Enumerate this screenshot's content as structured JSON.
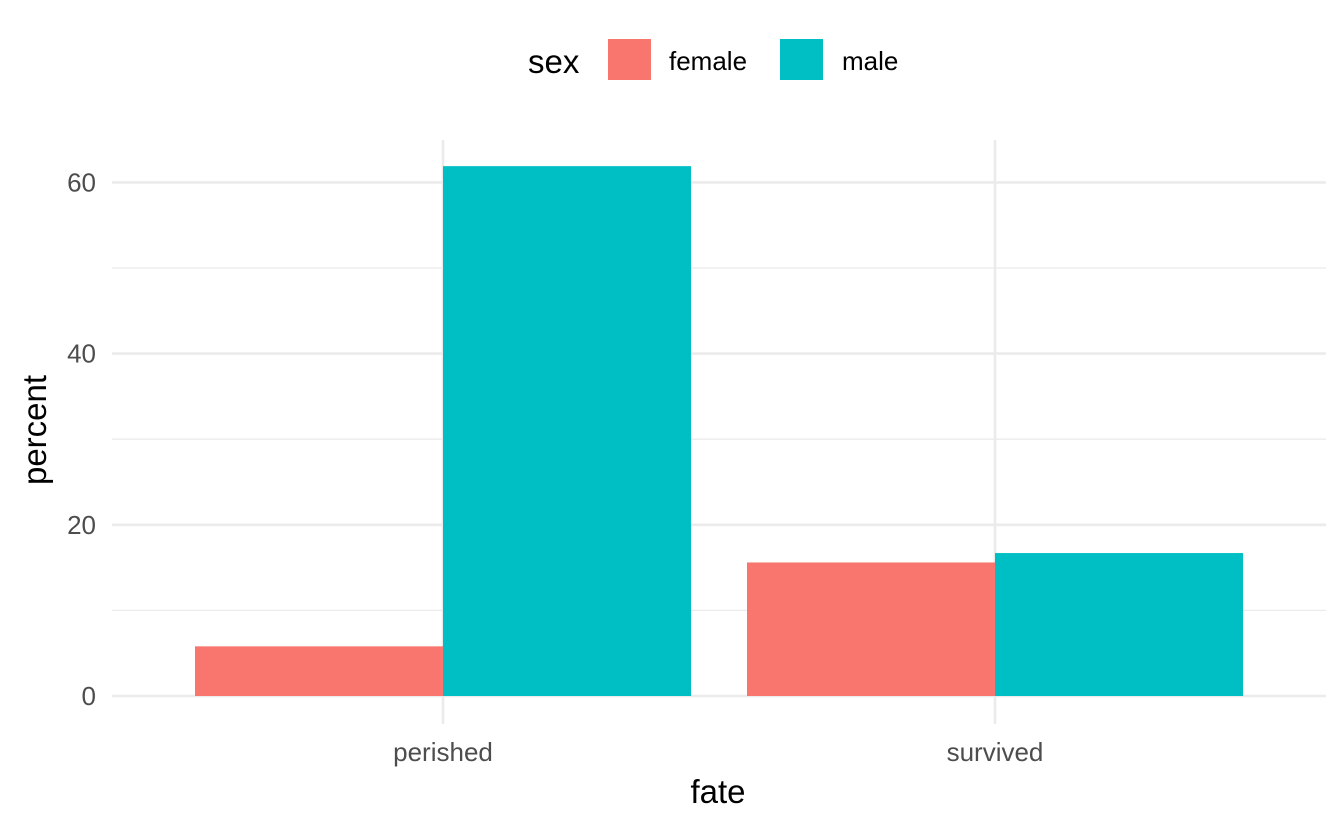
{
  "chart_data": {
    "type": "bar",
    "categories": [
      "perished",
      "survived"
    ],
    "series": [
      {
        "name": "female",
        "values": [
          5.8,
          15.6
        ],
        "color": "#F8766D"
      },
      {
        "name": "male",
        "values": [
          61.9,
          16.7
        ],
        "color": "#00BFC4"
      }
    ],
    "xlabel": "fate",
    "ylabel": "percent",
    "ylim": [
      0,
      65
    ],
    "yticks": [
      0,
      20,
      40,
      60
    ],
    "yticks_minor": [
      10,
      30,
      50
    ],
    "ytick_labels": [
      "0",
      "20",
      "40",
      "60"
    ],
    "grid": true,
    "legend": {
      "title": "sex",
      "placement": "top",
      "entries": [
        "female",
        "male"
      ]
    }
  }
}
